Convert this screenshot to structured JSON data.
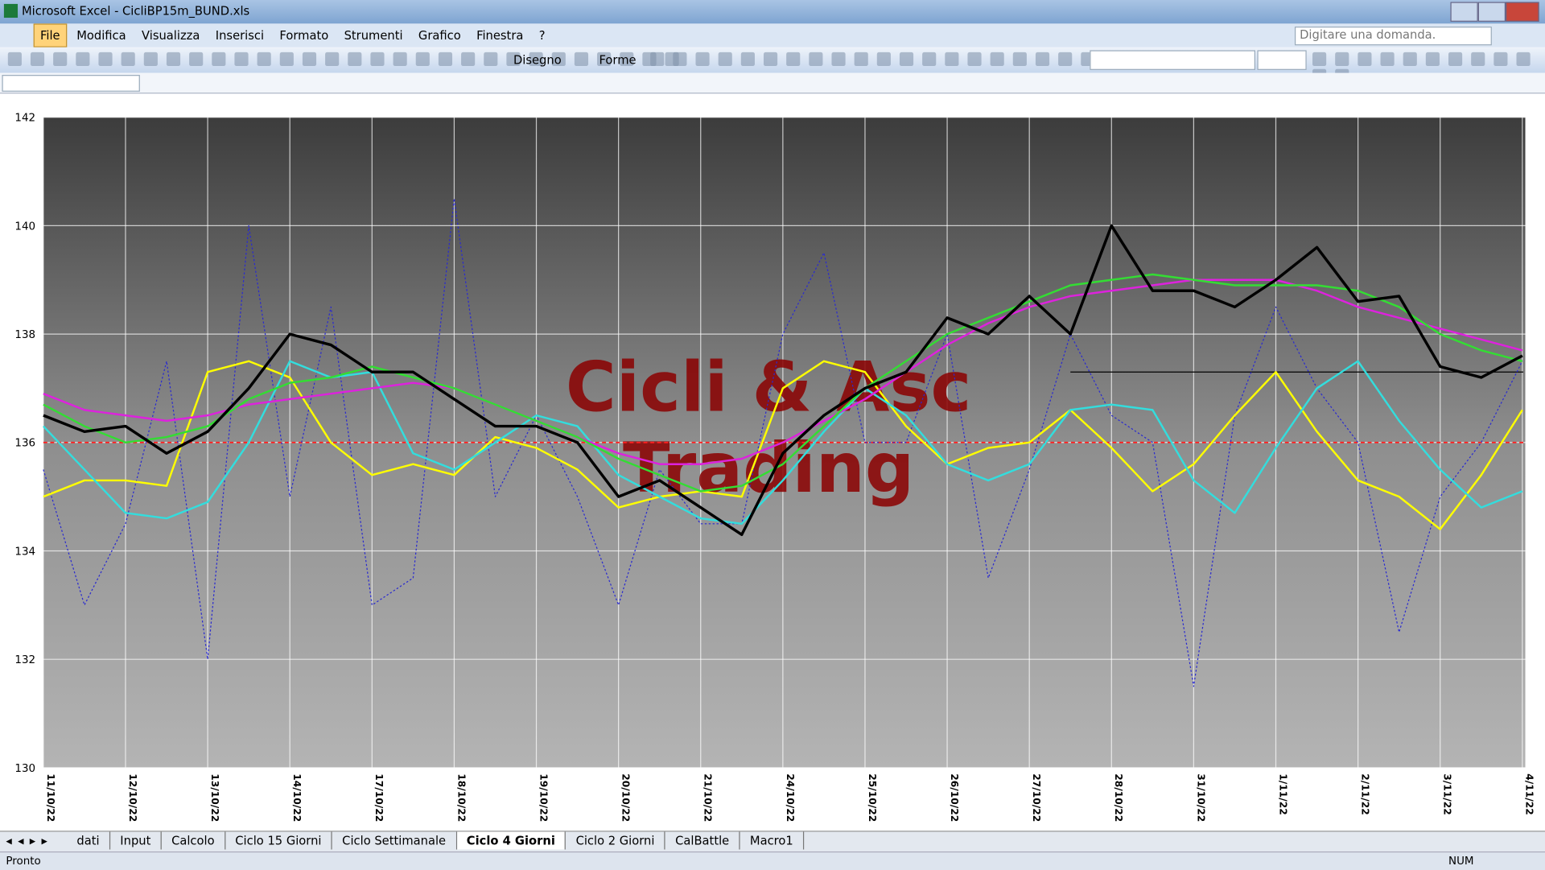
{
  "window": {
    "title": "Microsoft Excel - CicliBP15m_BUND.xls"
  },
  "menu": [
    "File",
    "Modifica",
    "Visualizza",
    "Inserisci",
    "Formato",
    "Strumenti",
    "Grafico",
    "Finestra",
    "?"
  ],
  "help_box": "Digitare una domanda.",
  "toolbar": {
    "draw": "Disegno",
    "shapes": "Forme"
  },
  "sheet_tabs": [
    "dati",
    "Input",
    "Calcolo",
    "Ciclo 15 Giorni",
    "Ciclo Settimanale",
    "Ciclo 4 Giorni",
    "Ciclo 2 Giorni",
    "CalBattle",
    "Macro1"
  ],
  "active_tab": 5,
  "status": {
    "left": "Pronto",
    "num": "NUM"
  },
  "chart_data": {
    "type": "line",
    "categories": [
      "11/10/22",
      null,
      "12/10/22",
      null,
      "13/10/22",
      null,
      "14/10/22",
      null,
      "17/10/22",
      null,
      "18/10/22",
      null,
      "19/10/22",
      null,
      "20/10/22",
      null,
      "21/10/22",
      null,
      "24/10/22",
      null,
      "25/10/22",
      null,
      "26/10/22",
      null,
      "27/10/22",
      null,
      "28/10/22",
      null,
      "31/10/22",
      null,
      "1/11/22",
      null,
      "2/11/22",
      null,
      "3/11/22",
      null,
      "4/11/22"
    ],
    "series": [
      {
        "color": "#2a2ad0",
        "style": "dotted",
        "values": [
          135.5,
          133,
          134.5,
          137.5,
          132,
          140,
          135,
          138.5,
          133,
          133.5,
          140.5,
          135,
          136.5,
          135,
          133,
          135.5,
          134.5,
          134.5,
          138,
          139.5,
          136,
          136,
          138,
          133.5,
          135.5,
          138,
          136.5,
          136,
          131.5,
          136.5,
          138.5,
          137,
          136,
          132.5,
          135,
          136,
          137.5
        ]
      },
      {
        "color": "#ffff00",
        "style": "solid",
        "values": [
          135,
          135.3,
          135.3,
          135.2,
          137.3,
          137.5,
          137.2,
          136,
          135.4,
          135.6,
          135.4,
          136.1,
          135.9,
          135.5,
          134.8,
          135,
          135.1,
          135,
          137,
          137.5,
          137.3,
          136.3,
          135.6,
          135.9,
          136,
          136.6,
          135.9,
          135.1,
          135.6,
          136.5,
          137.3,
          136.2,
          135.3,
          135,
          134.4,
          135.4,
          136.6
        ]
      },
      {
        "color": "#33dddd",
        "style": "solid",
        "values": [
          136.3,
          135.5,
          134.7,
          134.6,
          134.9,
          136,
          137.5,
          137.2,
          137.3,
          135.8,
          135.5,
          136,
          136.5,
          136.3,
          135.4,
          135,
          134.6,
          134.5,
          135.3,
          136.2,
          137,
          136.5,
          135.6,
          135.3,
          135.6,
          136.6,
          136.7,
          136.6,
          135.3,
          134.7,
          135.9,
          137,
          137.5,
          136.4,
          135.5,
          134.8,
          135.1
        ]
      },
      {
        "color": "#dd22dd",
        "style": "solid",
        "values": [
          136.9,
          136.6,
          136.5,
          136.4,
          136.5,
          136.7,
          136.8,
          136.9,
          137,
          137.1,
          137,
          136.7,
          136.4,
          136.1,
          135.8,
          135.6,
          135.6,
          135.7,
          136,
          136.4,
          136.8,
          137.3,
          137.8,
          138.2,
          138.5,
          138.7,
          138.8,
          138.9,
          139,
          139,
          139,
          138.8,
          138.5,
          138.3,
          138.1,
          137.9,
          137.7
        ]
      },
      {
        "color": "#33dd33",
        "style": "solid",
        "values": [
          136.7,
          136.3,
          136,
          136.1,
          136.3,
          136.8,
          137.1,
          137.2,
          137.4,
          137.2,
          137,
          136.7,
          136.4,
          136.1,
          135.7,
          135.4,
          135.1,
          135.2,
          135.6,
          136.3,
          137,
          137.5,
          138,
          138.3,
          138.6,
          138.9,
          139,
          139.1,
          139,
          138.9,
          138.9,
          138.9,
          138.8,
          138.5,
          138,
          137.7,
          137.5
        ]
      },
      {
        "color": "#000000",
        "style": "bold",
        "values": [
          136.5,
          136.2,
          136.3,
          135.8,
          136.2,
          137,
          138,
          137.8,
          137.3,
          137.3,
          136.8,
          136.3,
          136.3,
          136,
          135,
          135.3,
          134.8,
          134.3,
          135.8,
          136.5,
          137,
          137.3,
          138.3,
          138,
          138.7,
          138,
          140,
          138.8,
          138.8,
          138.5,
          139,
          139.6,
          138.6,
          138.7,
          137.4,
          137.2,
          137.6
        ]
      }
    ],
    "hlines": [
      {
        "value": 136,
        "color": "#ff2020",
        "style": "dashed"
      },
      {
        "value": 137.3,
        "color": "#000000",
        "style": "thin",
        "start": 25
      }
    ],
    "watermark": [
      "Cicli & Asc",
      "Trading"
    ],
    "ylim": [
      130,
      142
    ],
    "yticks": [
      130,
      132,
      134,
      136,
      138,
      140,
      142
    ],
    "grid": true
  }
}
